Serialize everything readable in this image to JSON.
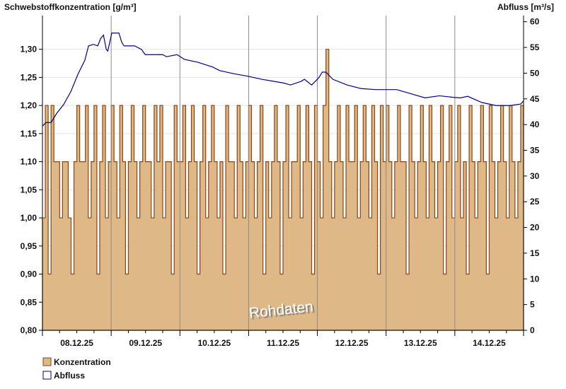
{
  "chart_data": {
    "type": "area+line",
    "left_axis": {
      "label": "Schwebstoffkonzentration [g/m³]",
      "range": [
        0.8,
        1.36
      ],
      "ticks": [
        "0,80",
        "0,85",
        "0,90",
        "0,95",
        "1,00",
        "1,05",
        "1,10",
        "1,15",
        "1,20",
        "1,25",
        "1,30"
      ],
      "tick_values": [
        0.8,
        0.85,
        0.9,
        0.95,
        1.0,
        1.05,
        1.1,
        1.15,
        1.2,
        1.25,
        1.3
      ]
    },
    "right_axis": {
      "label": "Abfluss [m³/s]",
      "range": [
        0,
        61.2
      ],
      "ticks": [
        "0",
        "5",
        "10",
        "15",
        "20",
        "25",
        "30",
        "35",
        "40",
        "45",
        "50",
        "55",
        "60"
      ],
      "tick_values": [
        0,
        5,
        10,
        15,
        20,
        25,
        30,
        35,
        40,
        45,
        50,
        55,
        60
      ]
    },
    "x_axis": {
      "range_hours": [
        0,
        168
      ],
      "tick_labels": [
        "08.12.25",
        "09.12.25",
        "10.12.25",
        "11.12.25",
        "12.12.25",
        "13.12.25",
        "14.12.25"
      ]
    },
    "watermark": "Rohdaten",
    "grid": true,
    "legend_position": "bottom-left",
    "colors": {
      "konzentration_fill": "#deb887",
      "konzentration_line": "#8b4513",
      "abfluss": "#00008b",
      "grid": "#e4e4e4",
      "dayline": "#8a8a8a"
    },
    "series": [
      {
        "name": "Konzentration",
        "axis": "left",
        "step_hours": 1,
        "values": [
          1.0,
          1.2,
          0.9,
          1.2,
          1.1,
          1.1,
          1.0,
          1.1,
          1.1,
          1.0,
          0.9,
          1.1,
          1.2,
          1.1,
          1.1,
          1.2,
          1.0,
          1.1,
          1.2,
          0.9,
          1.1,
          1.2,
          1.0,
          1.1,
          1.2,
          1.1,
          1.0,
          1.2,
          1.1,
          0.9,
          1.1,
          1.2,
          1.1,
          1.0,
          1.1,
          1.2,
          1.1,
          1.1,
          1.0,
          1.2,
          1.1,
          1.2,
          1.0,
          1.1,
          1.1,
          0.9,
          1.2,
          1.1,
          1.1,
          1.2,
          1.0,
          1.1,
          1.2,
          1.1,
          0.9,
          1.1,
          1.2,
          1.0,
          1.1,
          1.2,
          1.1,
          1.0,
          1.1,
          0.9,
          1.2,
          1.1,
          1.1,
          1.0,
          1.2,
          1.1,
          1.0,
          1.1,
          1.2,
          1.1,
          1.0,
          1.1,
          1.2,
          0.9,
          1.1,
          1.0,
          1.1,
          1.2,
          1.1,
          0.9,
          1.1,
          1.2,
          1.0,
          1.1,
          1.1,
          1.2,
          1.0,
          1.1,
          1.2,
          1.1,
          0.9,
          1.2,
          1.1,
          1.0,
          1.2,
          1.3,
          1.1,
          1.0,
          1.1,
          1.2,
          1.1,
          1.0,
          1.2,
          1.1,
          1.1,
          1.2,
          1.0,
          1.1,
          1.2,
          1.1,
          1.0,
          1.2,
          1.1,
          0.9,
          1.2,
          1.1,
          1.2,
          1.1,
          1.0,
          1.1,
          1.2,
          1.1,
          1.1,
          0.9,
          1.2,
          1.1,
          1.0,
          1.1,
          1.2,
          1.1,
          1.0,
          1.2,
          1.1,
          1.0,
          1.1,
          1.2,
          0.9,
          1.1,
          1.2,
          1.0,
          1.1,
          1.2,
          1.0,
          1.1,
          0.9,
          1.2,
          1.1,
          1.0,
          1.1,
          1.2,
          1.1,
          0.9,
          1.2,
          1.1,
          1.0,
          1.1,
          1.2,
          1.1,
          1.0,
          1.2,
          1.1,
          1.0,
          1.1,
          1.2
        ]
      },
      {
        "name": "Abfluss",
        "axis": "right",
        "points": [
          [
            0,
            39.7
          ],
          [
            1.2,
            40.4
          ],
          [
            3,
            40.4
          ],
          [
            5,
            42.2
          ],
          [
            7.4,
            43.9
          ],
          [
            9.9,
            46.4
          ],
          [
            12.4,
            49.8
          ],
          [
            14.8,
            52.5
          ],
          [
            16.1,
            55.3
          ],
          [
            17.8,
            55.6
          ],
          [
            19.3,
            55.3
          ],
          [
            20.3,
            56.7
          ],
          [
            21.3,
            57.4
          ],
          [
            22.3,
            54.6
          ],
          [
            22.8,
            54.3
          ],
          [
            23.5,
            56
          ],
          [
            24.2,
            57.8
          ],
          [
            26.7,
            57.8
          ],
          [
            27.7,
            56
          ],
          [
            28.5,
            55.3
          ],
          [
            32.2,
            55.3
          ],
          [
            34.6,
            54.6
          ],
          [
            35.9,
            53.6
          ],
          [
            42,
            53.6
          ],
          [
            43.3,
            53.2
          ],
          [
            47,
            53.6
          ],
          [
            49.5,
            52.7
          ],
          [
            54.4,
            52.1
          ],
          [
            59.4,
            51.2
          ],
          [
            61.9,
            50.5
          ],
          [
            66.8,
            49.9
          ],
          [
            71.8,
            49.4
          ],
          [
            76.7,
            48.8
          ],
          [
            84.1,
            48.1
          ],
          [
            86.6,
            47.7
          ],
          [
            90.3,
            48.4
          ],
          [
            91.5,
            48.8
          ],
          [
            94,
            47.7
          ],
          [
            96.5,
            49.1
          ],
          [
            97.7,
            50.2
          ],
          [
            99,
            50.2
          ],
          [
            101.4,
            48.8
          ],
          [
            106.4,
            47.7
          ],
          [
            111.3,
            47
          ],
          [
            116.3,
            46.8
          ],
          [
            123.7,
            46.8
          ],
          [
            128.7,
            46
          ],
          [
            133.6,
            45.2
          ],
          [
            138.6,
            45.6
          ],
          [
            143.5,
            45.3
          ],
          [
            146,
            45.2
          ],
          [
            148.5,
            45.5
          ],
          [
            153.4,
            44.3
          ],
          [
            158.4,
            43.7
          ],
          [
            163.3,
            43.7
          ],
          [
            167,
            44
          ],
          [
            168,
            44.6
          ]
        ]
      }
    ]
  }
}
